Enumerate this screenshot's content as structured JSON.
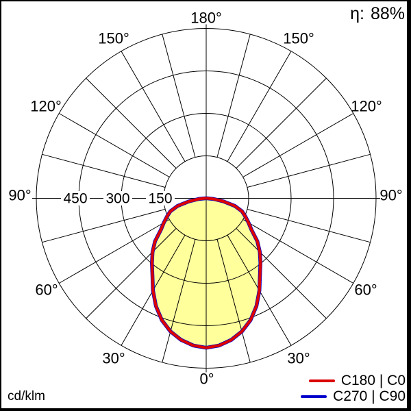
{
  "header": {
    "efficiency_label": "η:",
    "efficiency_value": "88%"
  },
  "unit_label": "cd/klm",
  "legend": {
    "items": [
      {
        "label": "C180 | C0",
        "color": "#dd0000"
      },
      {
        "label": "C270 | C90",
        "color": "#0000cc"
      }
    ]
  },
  "labels": {
    "angle_180": "180°",
    "angle_150": "150°",
    "angle_120": "120°",
    "angle_90": "90°",
    "angle_60": "60°",
    "angle_30": "30°",
    "angle_0": "0°",
    "tick_450": "450",
    "tick_300": "300",
    "tick_150": "150"
  },
  "chart_data": {
    "type": "polar",
    "title": "Luminous intensity distribution",
    "unit": "cd/klm",
    "efficiency_percent": 88,
    "angle_tick_labels": [
      "0°",
      "30°",
      "60°",
      "90°",
      "120°",
      "150°",
      "180°"
    ],
    "radial_tick_labels": [
      "150",
      "300",
      "450"
    ],
    "radial_grid": [
      150,
      300,
      450,
      600
    ],
    "radial_max": 600,
    "grid_angle_step_deg": 15,
    "colors": {
      "fill": "#ffff9c",
      "grid": "#000000",
      "c0_c180": "#dd0000",
      "c90_c270": "#0000cc"
    },
    "series": [
      {
        "name": "C180 | C0",
        "color": "#dd0000",
        "mirrored": true,
        "angles_deg": [
          0,
          5,
          10,
          15,
          20,
          25,
          30,
          35,
          40,
          45,
          50,
          55,
          60,
          65,
          70,
          75,
          80,
          85,
          90
        ],
        "values": [
          528,
          522,
          508,
          487,
          458,
          420,
          376,
          331,
          298,
          268,
          236,
          196,
          173,
          153,
          135,
          105,
          62,
          27,
          3
        ]
      },
      {
        "name": "C270 | C90",
        "color": "#0000cc",
        "mirrored": true,
        "angles_deg": [
          0,
          5,
          10,
          15,
          20,
          25,
          30,
          35,
          40,
          45,
          50,
          55,
          60,
          65,
          70,
          75,
          80,
          85,
          90
        ],
        "values": [
          528,
          522,
          508,
          487,
          458,
          420,
          376,
          331,
          298,
          268,
          236,
          196,
          173,
          153,
          135,
          105,
          62,
          27,
          3
        ]
      }
    ]
  }
}
